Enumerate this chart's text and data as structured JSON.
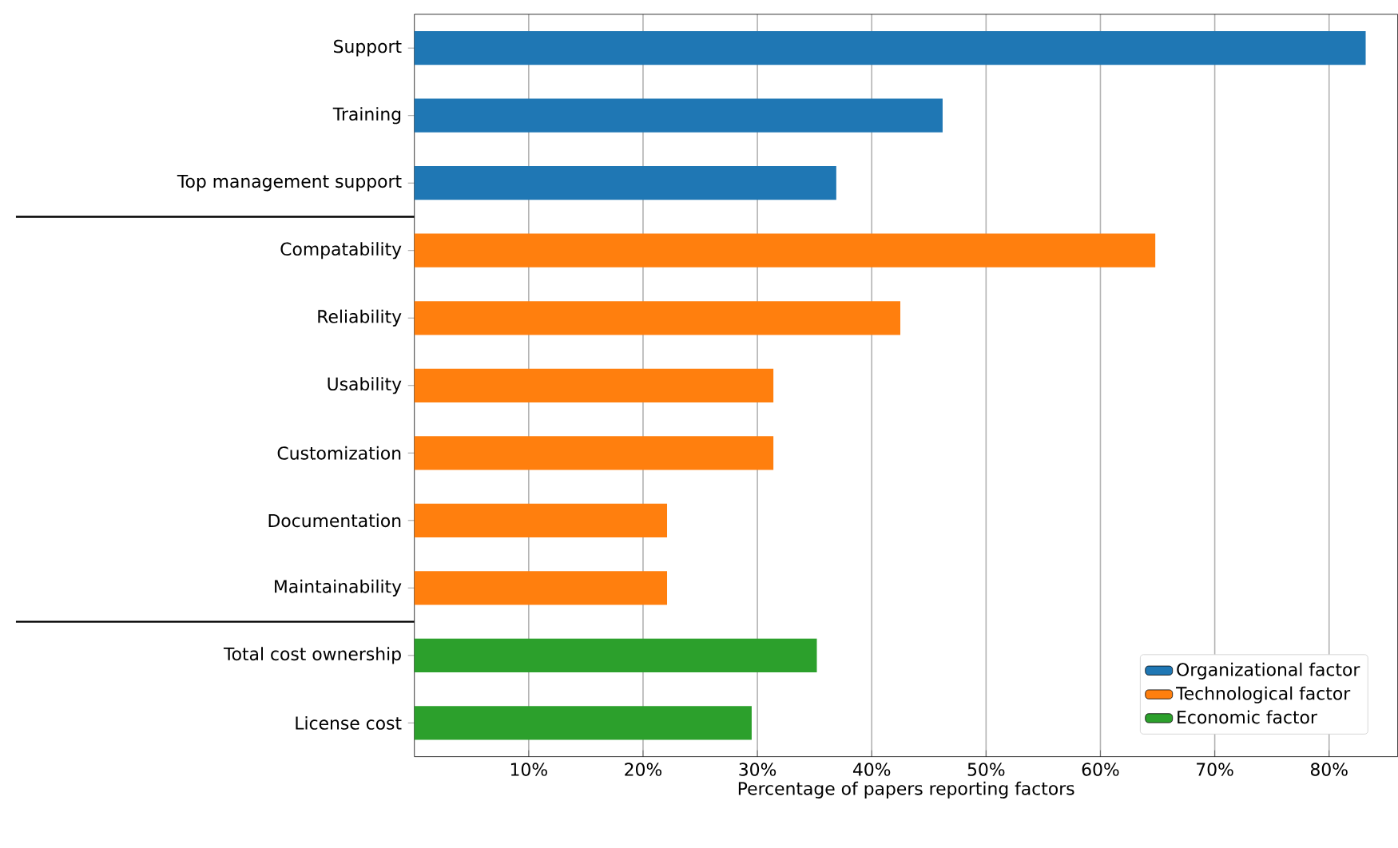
{
  "chart_data": {
    "type": "bar",
    "orientation": "horizontal",
    "xlabel": "Percentage of papers reporting factors",
    "categories": [
      "Support",
      "Training",
      "Top management support",
      "Compatability",
      "Reliability",
      "Usability",
      "Customization",
      "Documentation",
      "Maintainability",
      "Total cost ownership",
      "License cost"
    ],
    "series": [
      {
        "name": "Organizational factor",
        "color": "#1f77b4",
        "values": [
          83.2,
          46.2,
          36.9,
          null,
          null,
          null,
          null,
          null,
          null,
          null,
          null
        ]
      },
      {
        "name": "Technological factor",
        "color": "#ff7f0e",
        "values": [
          null,
          null,
          null,
          64.8,
          42.5,
          31.4,
          31.4,
          22.1,
          22.1,
          null,
          null
        ]
      },
      {
        "name": "Economic factor",
        "color": "#2ca02c",
        "values": [
          null,
          null,
          null,
          null,
          null,
          null,
          null,
          null,
          null,
          35.2,
          29.5
        ]
      }
    ],
    "xlim": [
      0,
      86
    ],
    "xticks": [
      {
        "value": 10,
        "label": "10%"
      },
      {
        "value": 20,
        "label": "20%"
      },
      {
        "value": 30,
        "label": "30%"
      },
      {
        "value": 40,
        "label": "40%"
      },
      {
        "value": 50,
        "label": "50%"
      },
      {
        "value": 60,
        "label": "60%"
      },
      {
        "value": 70,
        "label": "70%"
      },
      {
        "value": 80,
        "label": "80%"
      }
    ],
    "grid": "x",
    "legend": "bottom right"
  }
}
